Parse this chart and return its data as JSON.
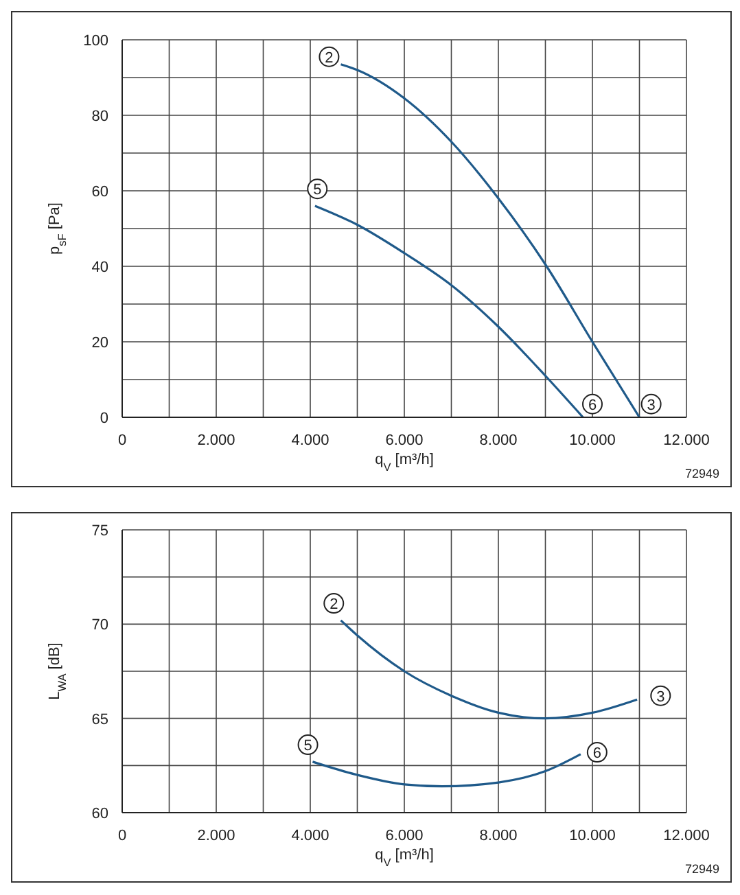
{
  "chart_data": [
    {
      "type": "line",
      "xlabel": "q$_{V}$ [m³/h]",
      "ylabel": "p$_{sF}$ [Pa]",
      "xlim": [
        0,
        12000
      ],
      "xticks": [
        0,
        {
          "value": 1000,
          "label": null
        },
        {
          "value": 2000,
          "label": "2.000"
        },
        {
          "value": 3000,
          "label": null
        },
        {
          "value": 4000,
          "label": "4.000"
        },
        {
          "value": 5000,
          "label": null
        },
        {
          "value": 6000,
          "label": "6.000"
        },
        {
          "value": 7000,
          "label": null
        },
        {
          "value": 8000,
          "label": "8.000"
        },
        {
          "value": 9000,
          "label": null
        },
        {
          "value": 10000,
          "label": "10.000"
        },
        {
          "value": 11000,
          "label": null
        },
        {
          "value": 12000,
          "label": "12.000"
        }
      ],
      "ylim": [
        0,
        100
      ],
      "yticks": [
        0,
        {
          "value": 10,
          "label": null
        },
        20,
        {
          "value": 30,
          "label": null
        },
        40,
        {
          "value": 50,
          "label": null
        },
        60,
        {
          "value": 70,
          "label": null
        },
        80,
        {
          "value": 90,
          "label": null
        },
        100
      ],
      "grid": true,
      "legend": false,
      "marker": "none",
      "line_style": "solid",
      "series": [
        {
          "color": "#1f5a8a",
          "x": [
            4650,
            5000,
            6000,
            7000,
            8000,
            9000,
            10000,
            11000
          ],
          "values": [
            93.5,
            92,
            84.5,
            73,
            58,
            40.5,
            20,
            0
          ]
        },
        {
          "color": "#1f5a8a",
          "x": [
            4100,
            5000,
            6000,
            7000,
            8000,
            9000,
            9800
          ],
          "values": [
            56,
            51,
            43.5,
            35,
            24,
            11,
            0
          ]
        }
      ],
      "annotations": [
        {
          "text": "2",
          "x": 4400,
          "y": 95.5
        },
        {
          "text": "5",
          "x": 4150,
          "y": 60.5
        },
        {
          "text": "6",
          "x": 10000,
          "y": 3.5
        },
        {
          "text": "3",
          "x": 11250,
          "y": 3.5
        },
        "72949"
      ]
    },
    {
      "type": "line",
      "xlabel": "q$_{V}$ [m³/h]",
      "ylabel": "L$_{WA}$ [dB]",
      "xlim": [
        0,
        12000
      ],
      "xticks": [
        0,
        {
          "value": 1000,
          "label": null
        },
        {
          "value": 2000,
          "label": "2.000"
        },
        {
          "value": 3000,
          "label": null
        },
        {
          "value": 4000,
          "label": "4.000"
        },
        {
          "value": 5000,
          "label": null
        },
        {
          "value": 6000,
          "label": "6.000"
        },
        {
          "value": 7000,
          "label": null
        },
        {
          "value": 8000,
          "label": "8.000"
        },
        {
          "value": 9000,
          "label": null
        },
        {
          "value": 10000,
          "label": "10.000"
        },
        {
          "value": 11000,
          "label": null
        },
        {
          "value": 12000,
          "label": "12.000"
        }
      ],
      "ylim": [
        60,
        75
      ],
      "yticks": [
        60,
        {
          "value": 62.5,
          "label": null
        },
        65,
        {
          "value": 67.5,
          "label": null
        },
        70,
        {
          "value": 72.5,
          "label": null
        },
        75
      ],
      "grid": true,
      "legend": false,
      "marker": "none",
      "line_style": "solid",
      "series": [
        {
          "color": "#1f5a8a",
          "x": [
            4650,
            5000,
            6000,
            7000,
            8000,
            9000,
            10000,
            10950
          ],
          "values": [
            70.2,
            69.4,
            67.5,
            66.2,
            65.3,
            65,
            65.3,
            66
          ]
        },
        {
          "color": "#1f5a8a",
          "x": [
            4050,
            5000,
            6000,
            6800,
            8000,
            9000,
            9750
          ],
          "values": [
            62.7,
            62,
            61.5,
            61.4,
            61.6,
            62.2,
            63.1
          ]
        }
      ],
      "annotations": [
        {
          "text": "2",
          "x": 4500,
          "y": 71.1
        },
        {
          "text": "3",
          "x": 11450,
          "y": 66.2
        },
        {
          "text": "5",
          "x": 3950,
          "y": 63.6
        },
        {
          "text": "6",
          "x": 10100,
          "y": 63.2
        },
        "72949"
      ]
    }
  ]
}
